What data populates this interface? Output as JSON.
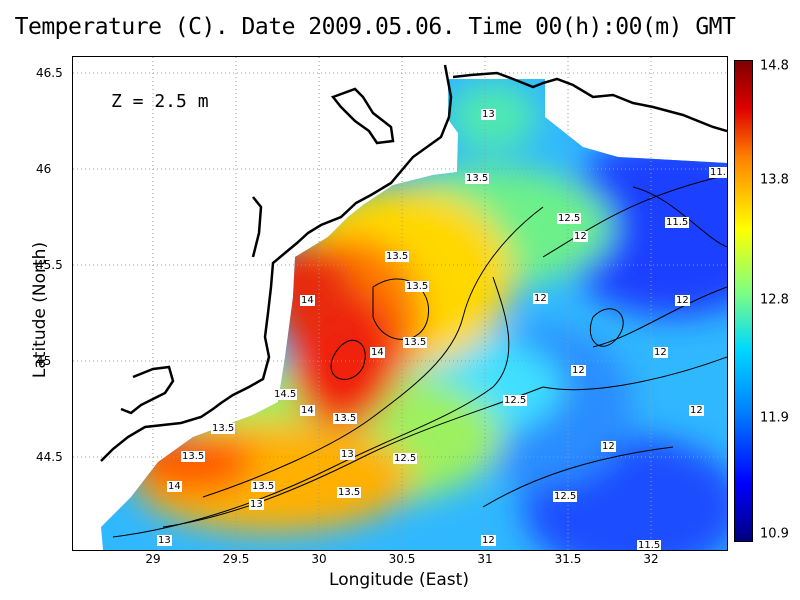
{
  "title": "Temperature (C). Date 2009.05.06. Time 00(h):00(m) GMT",
  "depth_label": "Z = 2.5 m",
  "x_axis": {
    "label": "Longitude (East)",
    "ticks": [
      "29",
      "29.5",
      "30",
      "30.5",
      "31",
      "31.5",
      "32"
    ]
  },
  "y_axis": {
    "label": "Latitude (North)",
    "ticks": [
      "46.5",
      "46",
      "45.5",
      "45",
      "44.5"
    ]
  },
  "colorbar": {
    "ticks": [
      "14.8",
      "13.8",
      "12.8",
      "11.9",
      "10.9"
    ]
  },
  "contour_labels": [
    "13",
    "13.5",
    "11.",
    "11.5",
    "12.5",
    "12",
    "13.5",
    "13.5",
    "14",
    "12",
    "12",
    "14",
    "13.5",
    "12",
    "14.5",
    "12",
    "14",
    "13.5",
    "12.5",
    "13.5",
    "13.5",
    "13",
    "12.5",
    "12",
    "13.5",
    "14",
    "13.5",
    "13",
    "12.5",
    "12",
    "13",
    "12",
    "11.5"
  ],
  "colors": {
    "warm": "#d81e1e",
    "cool": "#1f6dff",
    "land": "#ffffff",
    "coast": "#000000"
  }
}
